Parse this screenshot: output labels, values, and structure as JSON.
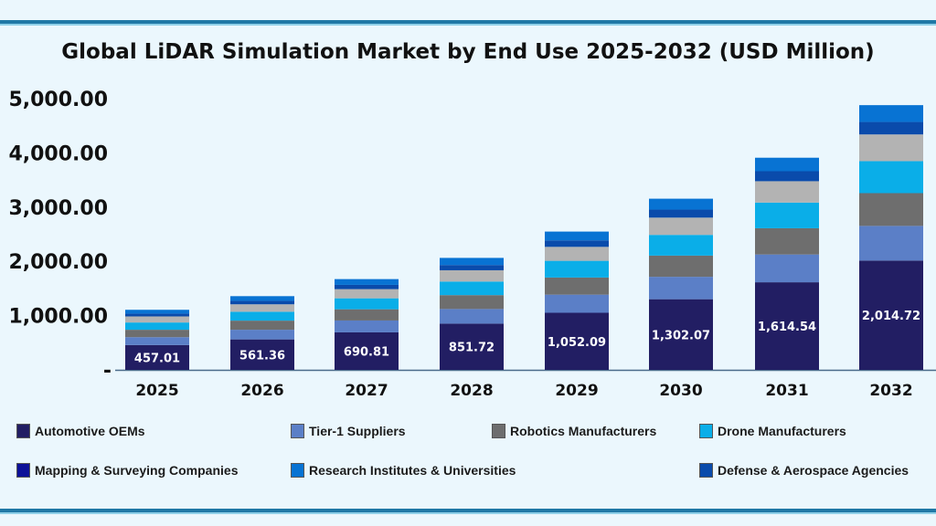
{
  "chart_data": {
    "type": "bar",
    "stacked": true,
    "title": "Global LiDAR Simulation Market by End Use 2025-2032 (USD Million)",
    "categories": [
      "2025",
      "2026",
      "2027",
      "2028",
      "2029",
      "2030",
      "2031",
      "2032"
    ],
    "ytick_labels": [
      "-",
      "1,000.00",
      "2,000.00",
      "3,000.00",
      "4,000.00",
      "5,000.00"
    ],
    "yticks": [
      0,
      1000,
      2000,
      3000,
      4000,
      5000
    ],
    "ylim": [
      0,
      5000
    ],
    "grid": false,
    "legend_position": "bottom",
    "series": [
      {
        "name": "Automotive OEMs",
        "color": "#221e63",
        "values": [
          457.01,
          561.36,
          690.81,
          851.72,
          1052.09,
          1302.07,
          1614.54,
          2014.72
        ],
        "data_labels": [
          "457.01",
          "561.36",
          "690.81",
          "851.72",
          "1,052.09",
          "1,302.07",
          "1,614.54",
          "2,014.72"
        ]
      },
      {
        "name": "Tier-1 Suppliers",
        "color": "#5b7fc7",
        "values": [
          145,
          178,
          219,
          270,
          334,
          413,
          512,
          639
        ]
      },
      {
        "name": "Robotics Manufacturers",
        "color": "#6e6e6e",
        "values": [
          137,
          168,
          207,
          256,
          316,
          391,
          484,
          604
        ]
      },
      {
        "name": "Drone Manufacturers",
        "color": "#0aaee8",
        "values": [
          134,
          164,
          202,
          250,
          308,
          382,
          473,
          590
        ]
      },
      {
        "color": "#b3b3b3",
        "values": [
          112,
          137,
          169,
          208,
          257,
          318,
          394,
          492
        ]
      },
      {
        "name": "Defense & Aerospace Agencies",
        "color": "#0a4bab",
        "values": [
          52,
          64,
          79,
          97,
          120,
          148,
          184,
          230
        ]
      },
      {
        "name": "Research Institutes & Universities",
        "color": "#0873d3",
        "values": [
          70,
          86,
          106,
          131,
          162,
          201,
          249,
          310
        ]
      }
    ],
    "legend": [
      {
        "label": "Automotive OEMs",
        "color": "#221e63"
      },
      {
        "label": "Tier-1 Suppliers",
        "color": "#5b7fc7"
      },
      {
        "label": "Robotics Manufacturers",
        "color": "#6e6e6e"
      },
      {
        "label": "Drone Manufacturers",
        "color": "#0aaee8"
      },
      {
        "label": "Mapping & Surveying Companies",
        "color": "#0d1198"
      },
      {
        "label": "Research Institutes & Universities",
        "color": "#0873d3"
      },
      {
        "label": "Defense & Aerospace Agencies",
        "color": "#0a4bab"
      }
    ]
  }
}
